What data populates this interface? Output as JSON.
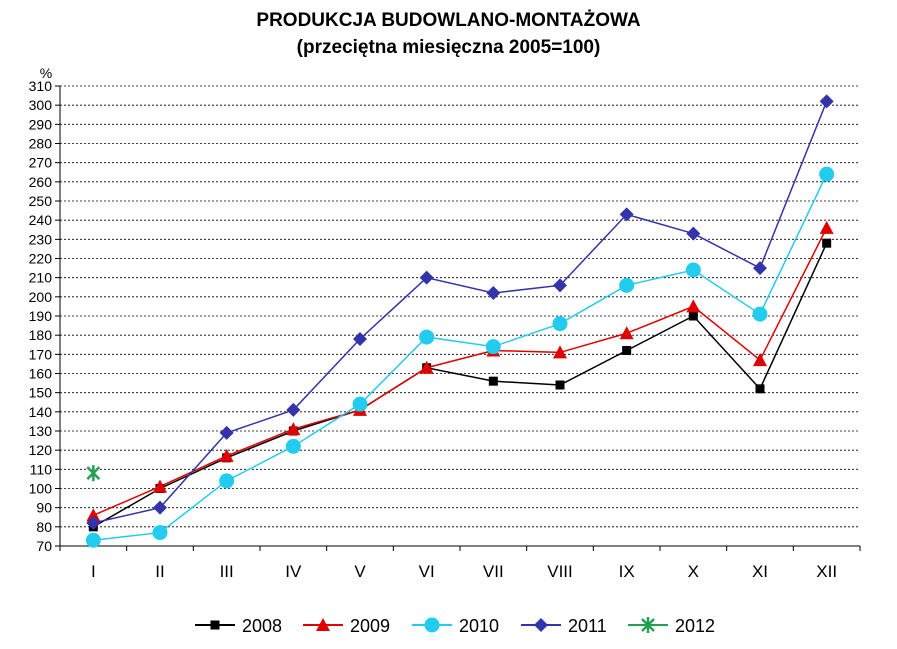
{
  "chart_data": {
    "type": "line",
    "title": "PRODUKCJA BUDOWLANO-MONTAŻOWA",
    "subtitle": "(przeciętna miesięczna 2005=100)",
    "ylabel": "%",
    "xlabel": "",
    "ylim": [
      70,
      310
    ],
    "ytick_step": 10,
    "grid": true,
    "legend_position": "bottom",
    "categories": [
      "I",
      "II",
      "III",
      "IV",
      "V",
      "VI",
      "VII",
      "VIII",
      "IX",
      "X",
      "XI",
      "XII"
    ],
    "series": [
      {
        "name": "2008",
        "color": "#000000",
        "marker": "square",
        "values": [
          80,
          100,
          116,
          130,
          141,
          163,
          156,
          154,
          172,
          190,
          152,
          228
        ]
      },
      {
        "name": "2009",
        "color": "#e00000",
        "marker": "triangle",
        "values": [
          86,
          101,
          117,
          131,
          141,
          163,
          172,
          171,
          181,
          195,
          167,
          236
        ]
      },
      {
        "name": "2010",
        "color": "#22ccee",
        "marker": "circle",
        "values": [
          73,
          77,
          104,
          122,
          144,
          179,
          174,
          186,
          206,
          214,
          191,
          264
        ]
      },
      {
        "name": "2011",
        "color": "#3333aa",
        "marker": "diamond",
        "values": [
          82,
          90,
          129,
          141,
          178,
          210,
          202,
          206,
          243,
          233,
          215,
          302
        ]
      },
      {
        "name": "2012",
        "color": "#22a050",
        "marker": "star",
        "values": [
          108,
          null,
          null,
          null,
          null,
          null,
          null,
          null,
          null,
          null,
          null,
          null
        ]
      }
    ]
  }
}
